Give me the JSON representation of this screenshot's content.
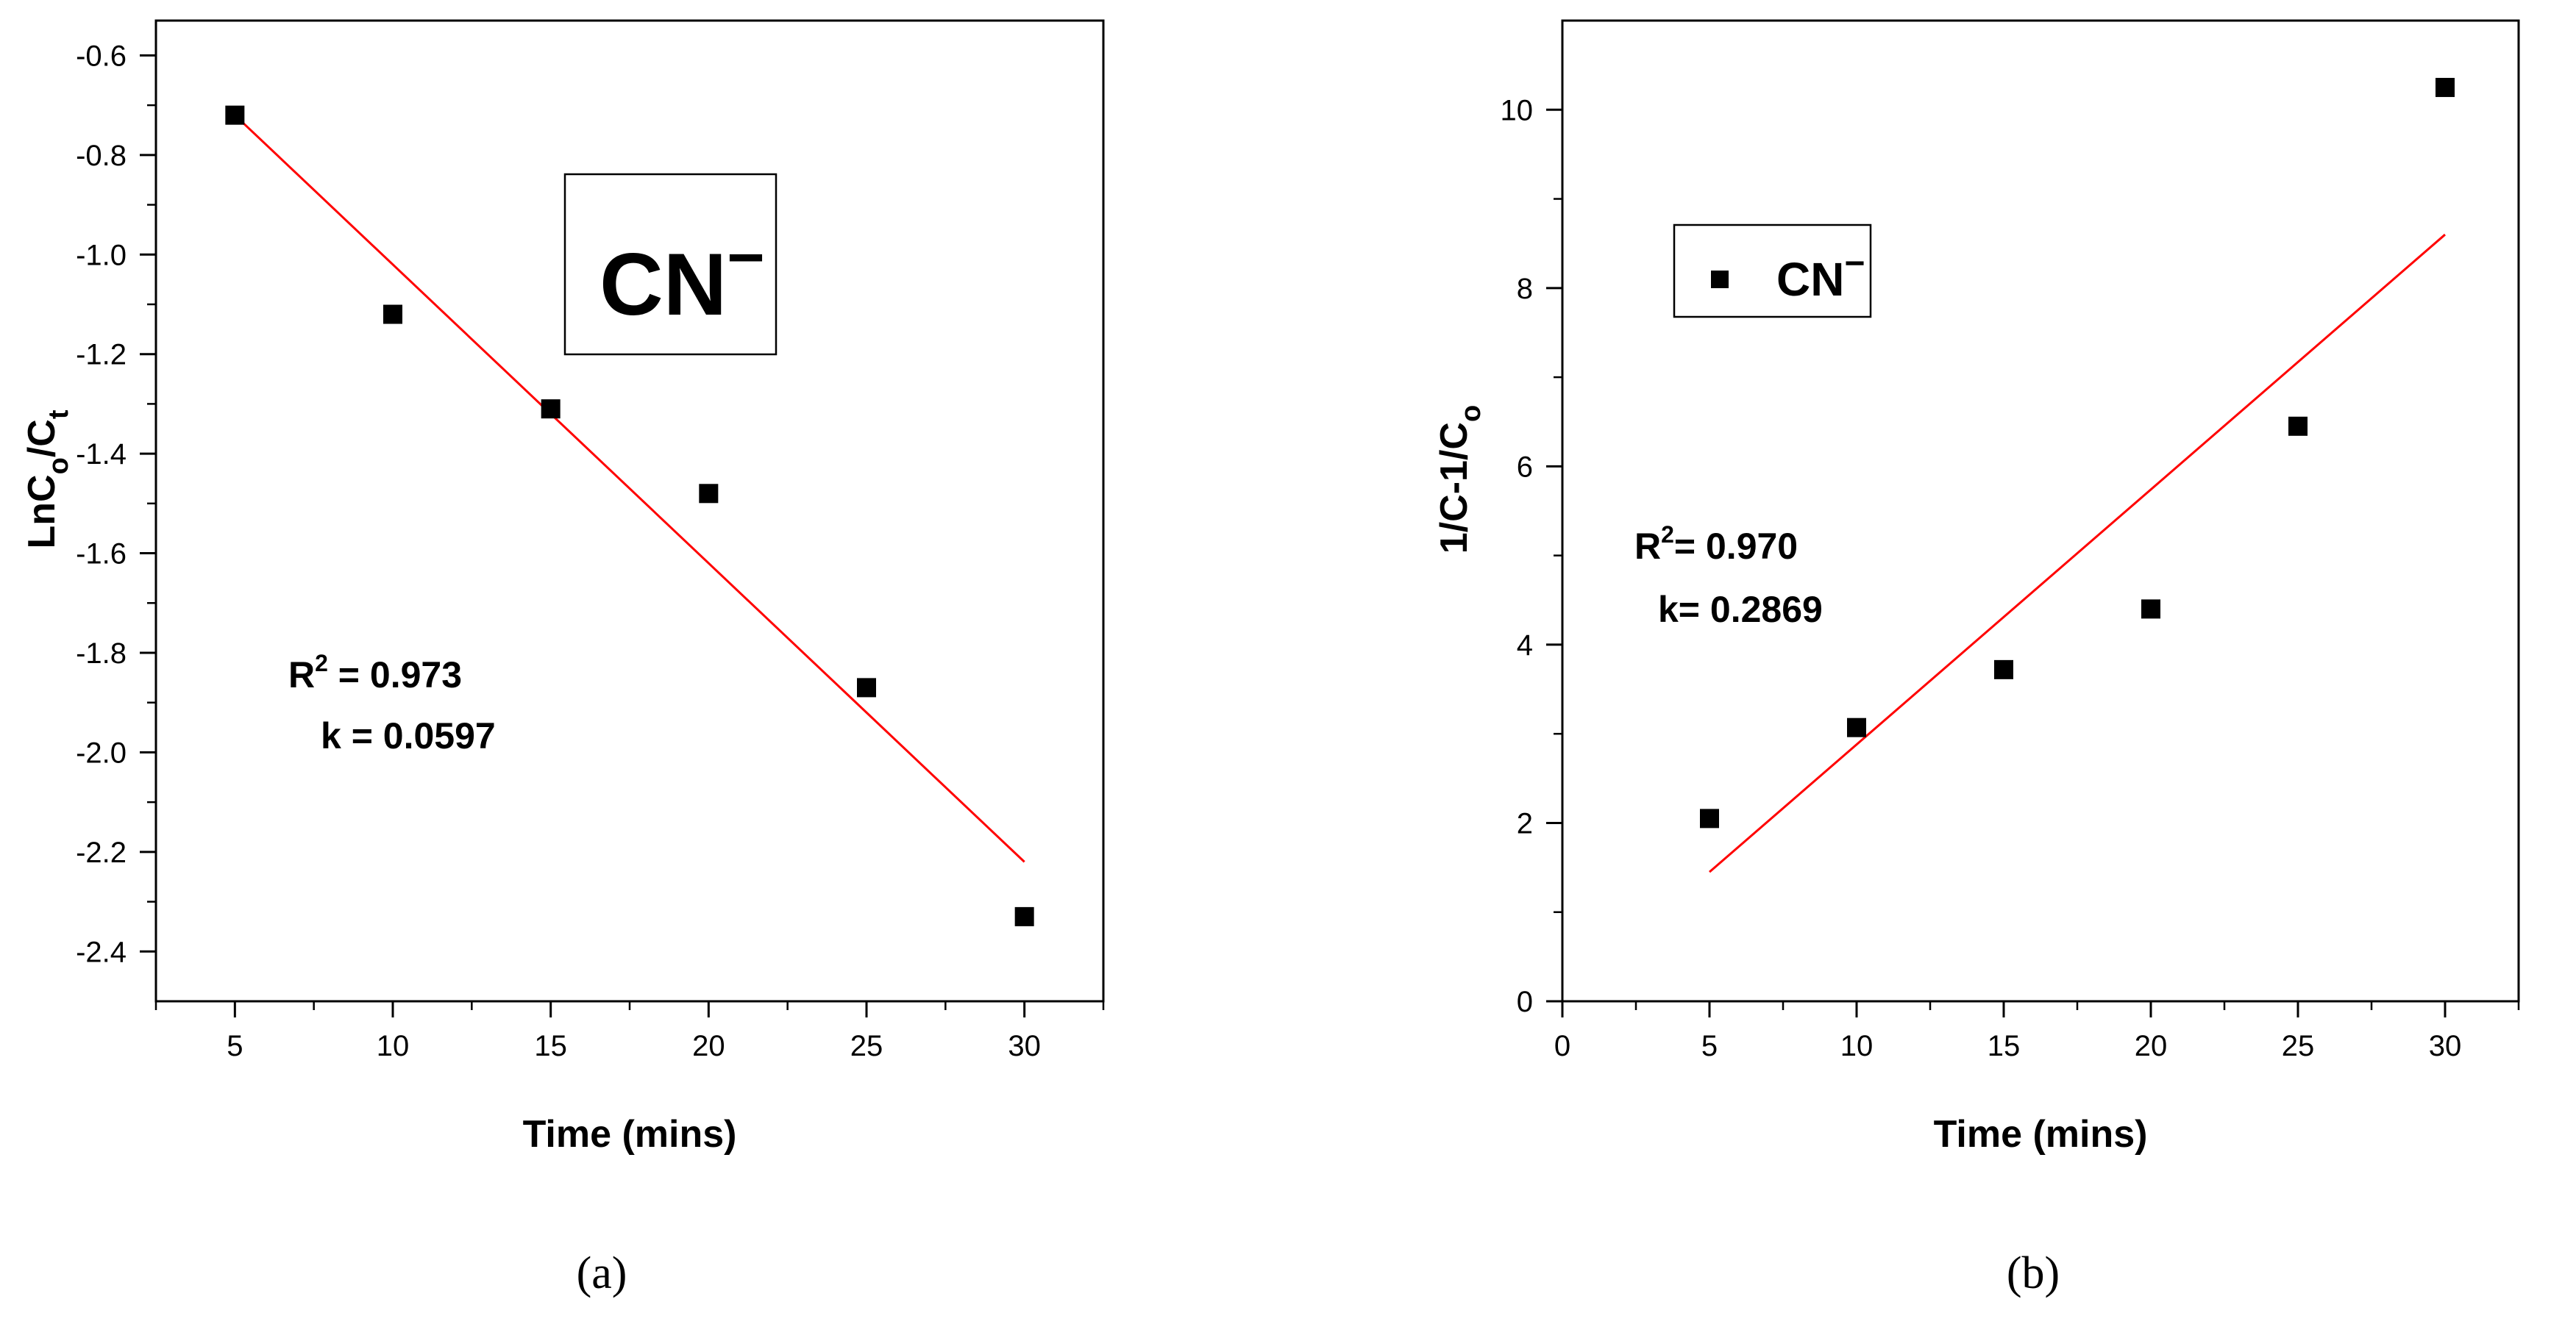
{
  "chart_data": [
    {
      "type": "scatter",
      "panel_label": "(a)",
      "title": "",
      "xlabel": "Time (mins)",
      "ylabel_main": "LnC",
      "ylabel_sub1": "o",
      "ylabel_mid": "/C",
      "ylabel_sub2": "t",
      "xlim": [
        2.5,
        32.5
      ],
      "ylim": [
        -2.5,
        -0.53
      ],
      "xticks": [
        5,
        10,
        15,
        20,
        25,
        30
      ],
      "yticks": [
        -0.6,
        -0.8,
        -1.0,
        -1.2,
        -1.4,
        -1.6,
        -1.8,
        -2.0,
        -2.2,
        -2.4
      ],
      "ytick_labels": [
        "-0.6",
        "-0.8",
        "-1.0",
        "-1.2",
        "-1.4",
        "-1.6",
        "-1.8",
        "-2.0",
        "-2.2",
        "-2.4"
      ],
      "grid": false,
      "series": [
        {
          "x": [
            5,
            10,
            15,
            20,
            25,
            30
          ],
          "y": [
            -0.72,
            -1.12,
            -1.31,
            -1.48,
            -1.87,
            -2.33
          ],
          "color": "#000000"
        }
      ],
      "fit_line": {
        "x": [
          5,
          30
        ],
        "y": [
          -0.72,
          -2.22
        ],
        "color": "#ff0000"
      },
      "legend": {
        "text_main": "CN",
        "text_sup": "−",
        "placement": "top-center"
      },
      "annotation": {
        "r2_prefix": "R",
        "r2_sup": "2",
        "r2_value": " = 0.973",
        "k_text": "k = 0.0597"
      }
    },
    {
      "type": "scatter",
      "panel_label": "(b)",
      "title": "",
      "xlabel": "Time (mins)",
      "ylabel_main": "1/C-1/C",
      "ylabel_sub1": "o",
      "xlim": [
        0,
        32.5
      ],
      "ylim": [
        0,
        11
      ],
      "xticks": [
        0,
        5,
        10,
        15,
        20,
        25,
        30
      ],
      "yticks": [
        0,
        2,
        4,
        6,
        8,
        10
      ],
      "ytick_labels": [
        "0",
        "2",
        "4",
        "6",
        "8",
        "10"
      ],
      "grid": false,
      "series": [
        {
          "x": [
            5,
            10,
            15,
            20,
            25,
            30
          ],
          "y": [
            2.05,
            3.07,
            3.72,
            4.4,
            6.45,
            10.25
          ],
          "color": "#000000"
        }
      ],
      "fit_line": {
        "x": [
          5,
          30
        ],
        "y": [
          1.45,
          8.6
        ],
        "color": "#ff0000"
      },
      "legend": {
        "text_main": "CN",
        "text_sup": "−",
        "placement": "top-left"
      },
      "annotation": {
        "r2_prefix": "R",
        "r2_sup": "2",
        "r2_value": "= 0.970",
        "k_text": "k= 0.2869"
      }
    }
  ]
}
